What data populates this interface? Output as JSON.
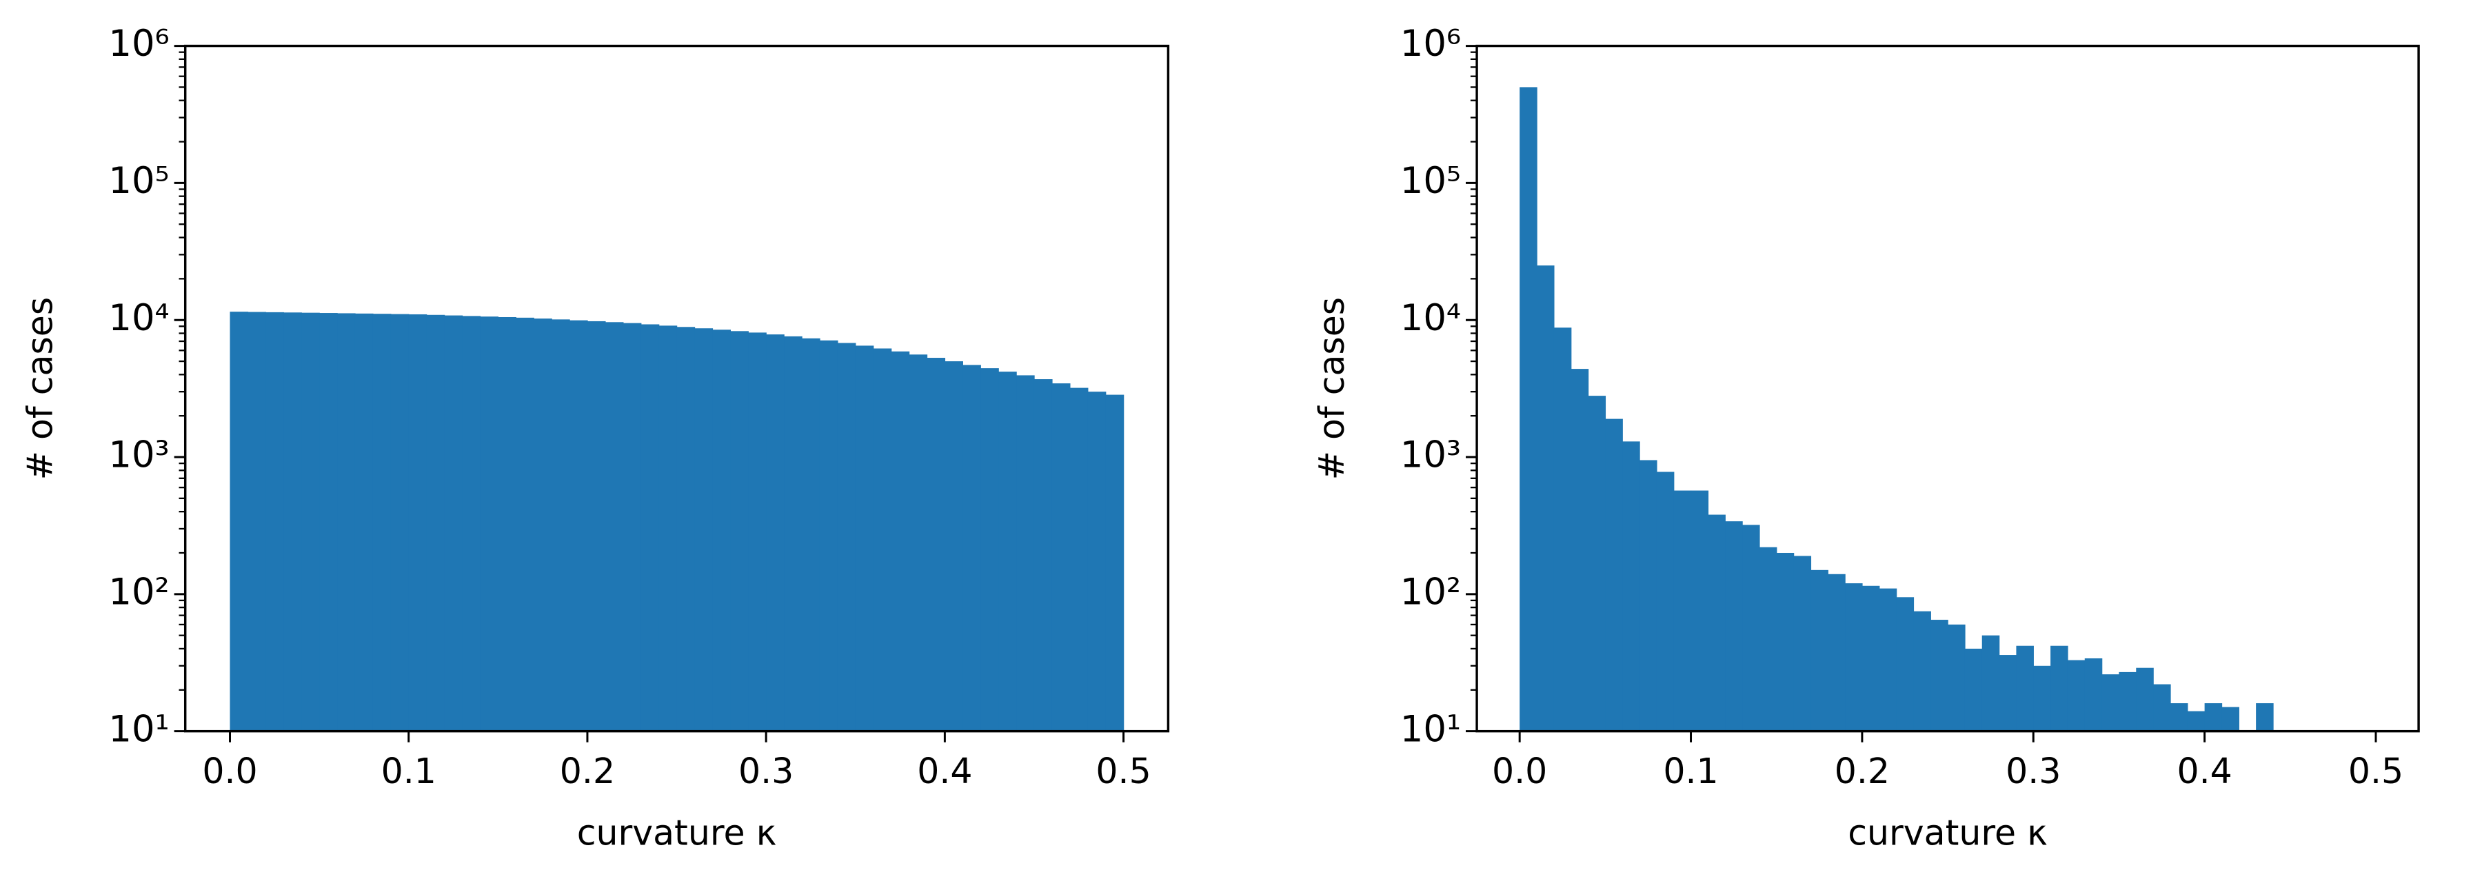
{
  "chart_data": [
    {
      "type": "histogram",
      "xlabel": "curvature κ",
      "ylabel": "# of cases",
      "color": "#1f77b4",
      "log_y": true,
      "bins": [
        0,
        0.01,
        0.02,
        0.03,
        0.04,
        0.05,
        0.06,
        0.07,
        0.08,
        0.09,
        0.1,
        0.11,
        0.12,
        0.13,
        0.14,
        0.15,
        0.16,
        0.17,
        0.18,
        0.19,
        0.2,
        0.21,
        0.22,
        0.23,
        0.24,
        0.25,
        0.26,
        0.27,
        0.28,
        0.29,
        0.3,
        0.31,
        0.32,
        0.33,
        0.34,
        0.35,
        0.36,
        0.37,
        0.38,
        0.39,
        0.4,
        0.41,
        0.42,
        0.43,
        0.44,
        0.45,
        0.46,
        0.47,
        0.48,
        0.49,
        0.5
      ],
      "values": [
        11500,
        11450,
        11400,
        11350,
        11300,
        11250,
        11200,
        11150,
        11100,
        11050,
        11000,
        10900,
        10800,
        10700,
        10600,
        10500,
        10400,
        10250,
        10100,
        9950,
        9800,
        9650,
        9500,
        9300,
        9100,
        8900,
        8700,
        8500,
        8300,
        8100,
        7850,
        7600,
        7350,
        7100,
        6800,
        6500,
        6200,
        5900,
        5600,
        5300,
        5000,
        4700,
        4450,
        4200,
        3950,
        3700,
        3450,
        3200,
        3000,
        2850
      ],
      "xlim": [
        -0.025,
        0.525
      ],
      "xticks": [
        {
          "value": 0,
          "label": "0.0"
        },
        0.1,
        0.2,
        0.3,
        0.4,
        0.5
      ],
      "ylim": [
        10,
        1000000
      ],
      "yticks": [
        {
          "value": 10,
          "label": "10¹"
        },
        {
          "value": 100,
          "label": "10²"
        },
        {
          "value": 1000,
          "label": "10³"
        },
        {
          "value": 10000,
          "label": "10⁴"
        },
        {
          "value": 100000,
          "label": "10⁵"
        },
        {
          "value": 1000000,
          "label": "10⁶"
        }
      ]
    },
    {
      "type": "histogram",
      "xlabel": "curvature κ",
      "ylabel": "# of cases",
      "color": "#1f77b4",
      "log_y": true,
      "bins": [
        0,
        0.01,
        0.02,
        0.03,
        0.04,
        0.05,
        0.06,
        0.07,
        0.08,
        0.09,
        0.1,
        0.11,
        0.12,
        0.13,
        0.14,
        0.15,
        0.16,
        0.17,
        0.18,
        0.19,
        0.2,
        0.21,
        0.22,
        0.23,
        0.24,
        0.25,
        0.26,
        0.27,
        0.28,
        0.29,
        0.3,
        0.31,
        0.32,
        0.33,
        0.34,
        0.35,
        0.36,
        0.37,
        0.38,
        0.39,
        0.4,
        0.41,
        0.42,
        0.43,
        0.44,
        0.45,
        0.46,
        0.47,
        0.48,
        0.49,
        0.5
      ],
      "values": [
        500000,
        25000,
        8800,
        4400,
        2800,
        1900,
        1300,
        950,
        780,
        570,
        570,
        380,
        340,
        320,
        220,
        200,
        190,
        150,
        140,
        120,
        115,
        110,
        95,
        75,
        65,
        60,
        40,
        50,
        36,
        42,
        30,
        42,
        33,
        34,
        26,
        27,
        29,
        22,
        16,
        14,
        16,
        15,
        0,
        16,
        0,
        0,
        0,
        0,
        0,
        0
      ],
      "xlim": [
        -0.025,
        0.525
      ],
      "xticks": [
        {
          "value": 0,
          "label": "0.0"
        },
        0.1,
        0.2,
        0.3,
        0.4,
        0.5
      ],
      "ylim": [
        10,
        1000000
      ],
      "yticks": [
        {
          "value": 10,
          "label": "10¹"
        },
        {
          "value": 100,
          "label": "10²"
        },
        {
          "value": 1000,
          "label": "10³"
        },
        {
          "value": 10000,
          "label": "10⁴"
        },
        {
          "value": 100000,
          "label": "10⁵"
        },
        {
          "value": 1000000,
          "label": "10⁶"
        }
      ]
    }
  ]
}
